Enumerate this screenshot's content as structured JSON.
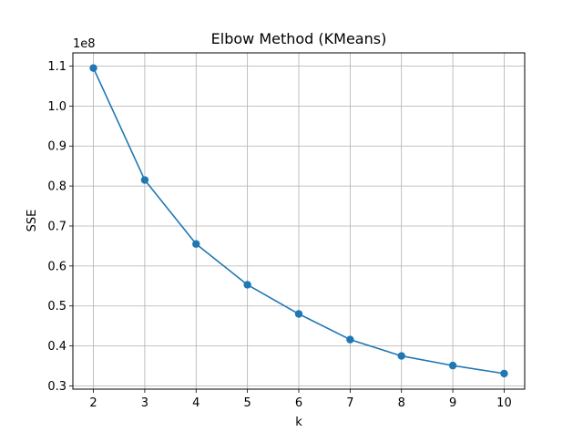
{
  "chart_data": {
    "type": "line",
    "title": "Elbow Method (KMeans)",
    "xlabel": "k",
    "ylabel": "SSE",
    "y_offset_label": "1e8",
    "x": [
      2,
      3,
      4,
      5,
      6,
      7,
      8,
      9,
      10
    ],
    "series": [
      {
        "values": [
          1.095,
          0.815,
          0.655,
          0.553,
          0.48,
          0.416,
          0.375,
          0.351,
          0.331
        ],
        "color": "#1f77b4",
        "marker": "circle"
      }
    ],
    "x_ticks": [
      "2",
      "3",
      "4",
      "5",
      "6",
      "7",
      "8",
      "9",
      "10"
    ],
    "y_ticks": [
      "0.3",
      "0.4",
      "0.5",
      "0.6",
      "0.7",
      "0.8",
      "0.9",
      "1.0",
      "1.1"
    ],
    "xlim": [
      1.6,
      10.4
    ],
    "ylim": [
      0.292,
      1.133
    ],
    "grid": true
  }
}
